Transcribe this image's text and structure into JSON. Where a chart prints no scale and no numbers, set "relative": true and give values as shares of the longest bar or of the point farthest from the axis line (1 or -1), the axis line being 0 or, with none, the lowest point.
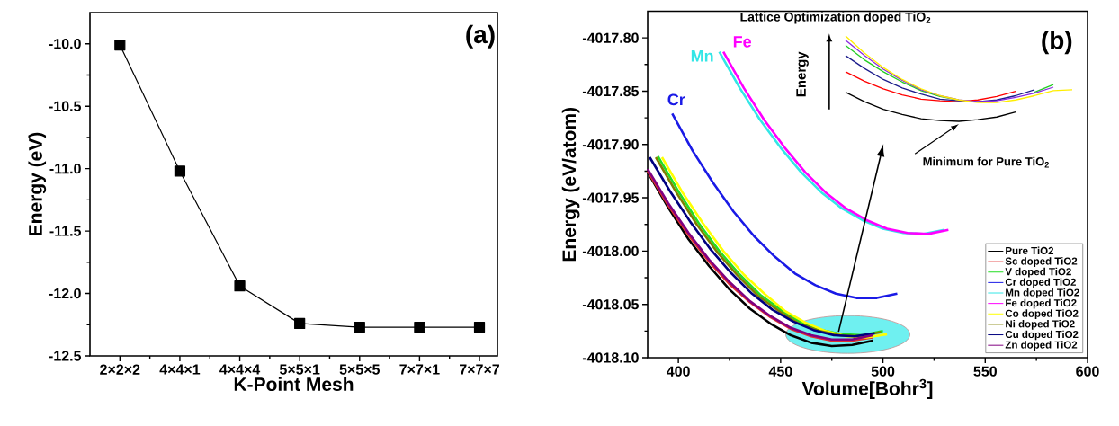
{
  "chart_data": [
    {
      "type": "line",
      "xlabel": "K-Point Mesh",
      "ylabel": "Energy (eV)",
      "categories": [
        "2×2×2",
        "4×4×1",
        "4×4×4",
        "5×5×1",
        "5×5×5",
        "7×7×1",
        "7×7×7"
      ],
      "values": [
        -10.01,
        -11.02,
        -11.94,
        -12.24,
        -12.27,
        -12.27,
        -12.27
      ],
      "color": "#000000",
      "marker": "square",
      "ylim": [
        -12.5,
        -9.75
      ],
      "yticks": [
        -12.5,
        {
          "value": -12.0,
          "label": "-12.0"
        },
        -11.5,
        {
          "value": -11.0,
          "label": "-11.0"
        },
        -10.5,
        {
          "value": -10.0,
          "label": "-10.0"
        }
      ],
      "annotations": [
        "(a)"
      ]
    },
    {
      "type": "line",
      "xlabel": "Volume[Bohr$^{3}$]",
      "ylabel": "Energy (eV/atom)",
      "xlim": [
        385,
        600
      ],
      "xticks": [
        400,
        450,
        500,
        550,
        600
      ],
      "ylim": [
        -4018.1,
        -4017.775
      ],
      "yticks": [
        {
          "value": -4018.1,
          "label": "-4018.10"
        },
        -4018.05,
        {
          "value": -4018.0,
          "label": "-4018.00"
        },
        -4017.95,
        {
          "value": -4017.9,
          "label": "-4017.90"
        },
        -4017.85,
        {
          "value": -4017.8,
          "label": "-4017.80"
        }
      ],
      "legend": "bottom right",
      "series": [
        {
          "name": "Pure TiO2",
          "color": "#000000",
          "x": [
            385,
            395,
            405,
            415,
            425,
            435,
            445,
            455,
            465,
            475,
            485,
            495
          ],
          "values": [
            -4017.926,
            -4017.959,
            -4017.989,
            -4018.014,
            -4018.036,
            -4018.054,
            -4018.068,
            -4018.079,
            -4018.086,
            -4018.089,
            -4018.088,
            -4018.084
          ]
        },
        {
          "name": "Sc doped TiO2",
          "color": "#e03030",
          "x": [
            385,
            395,
            405,
            415,
            425,
            435,
            445,
            455,
            465,
            475,
            485,
            495
          ],
          "values": [
            -4017.925,
            -4017.957,
            -4017.985,
            -4018.01,
            -4018.031,
            -4018.048,
            -4018.062,
            -4018.073,
            -4018.08,
            -4018.084,
            -4018.084,
            -4018.081
          ]
        },
        {
          "name": "V doped TiO2",
          "color": "#22dd22",
          "x": [
            390,
            400,
            410,
            420,
            430,
            440,
            450,
            460,
            470,
            480,
            490,
            500
          ],
          "values": [
            -4017.911,
            -4017.944,
            -4017.974,
            -4018.0,
            -4018.022,
            -4018.041,
            -4018.055,
            -4018.067,
            -4018.074,
            -4018.078,
            -4018.079,
            -4018.075
          ]
        },
        {
          "name": "Cr doped TiO2",
          "color": "#1a1ae6",
          "x": [
            397,
            407,
            417,
            427,
            437,
            447,
            457,
            467,
            477,
            487,
            497,
            507
          ],
          "values": [
            -4017.871,
            -4017.906,
            -4017.936,
            -4017.963,
            -4017.986,
            -4018.005,
            -4018.021,
            -4018.032,
            -4018.04,
            -4018.044,
            -4018.044,
            -4018.04
          ]
        },
        {
          "name": "Mn doped TiO2",
          "color": "#33e6e6",
          "x": [
            420,
            430,
            440,
            450,
            460,
            470,
            480,
            490,
            500,
            510,
            520,
            530
          ],
          "values": [
            -4017.813,
            -4017.847,
            -4017.877,
            -4017.903,
            -4017.926,
            -4017.945,
            -4017.96,
            -4017.971,
            -4017.979,
            -4017.983,
            -4017.984,
            -4017.98
          ]
        },
        {
          "name": "Fe doped TiO2",
          "color": "#ff00ff",
          "x": [
            422,
            432,
            442,
            452,
            462,
            472,
            482,
            492,
            502,
            512,
            522,
            532
          ],
          "values": [
            -4017.813,
            -4017.847,
            -4017.877,
            -4017.903,
            -4017.926,
            -4017.945,
            -4017.96,
            -4017.971,
            -4017.979,
            -4017.983,
            -4017.984,
            -4017.98
          ]
        },
        {
          "name": "Co doped TiO2",
          "color": "#ffff00",
          "x": [
            392,
            402,
            412,
            422,
            432,
            442,
            452,
            462,
            472,
            482,
            492,
            502
          ],
          "values": [
            -4017.912,
            -4017.945,
            -4017.974,
            -4018.0,
            -4018.022,
            -4018.04,
            -4018.056,
            -4018.067,
            -4018.075,
            -4018.08,
            -4018.081,
            -4018.078
          ]
        },
        {
          "name": "Ni doped TiO2",
          "color": "#808000",
          "x": [
            389,
            399,
            409,
            419,
            429,
            439,
            449,
            459,
            469,
            479,
            489,
            499
          ],
          "values": [
            -4017.912,
            -4017.945,
            -4017.975,
            -4018.001,
            -4018.023,
            -4018.042,
            -4018.056,
            -4018.068,
            -4018.075,
            -4018.079,
            -4018.08,
            -4018.076
          ]
        },
        {
          "name": "Cu doped TiO2",
          "color": "#000080",
          "x": [
            386,
            396,
            406,
            416,
            426,
            436,
            446,
            456,
            466,
            476,
            486,
            496
          ],
          "values": [
            -4017.912,
            -4017.944,
            -4017.973,
            -4017.999,
            -4018.021,
            -4018.04,
            -4018.055,
            -4018.066,
            -4018.074,
            -4018.079,
            -4018.08,
            -4018.077
          ]
        },
        {
          "name": "Zn doped TiO2",
          "color": "#800080",
          "x": [
            385,
            395,
            405,
            415,
            425,
            435,
            445,
            455,
            465,
            475,
            485,
            495
          ],
          "values": [
            -4017.923,
            -4017.955,
            -4017.983,
            -4018.008,
            -4018.029,
            -4018.047,
            -4018.061,
            -4018.072,
            -4018.079,
            -4018.083,
            -4018.083,
            -4018.079
          ]
        }
      ],
      "annotations": [
        "Cr",
        "Mn",
        "Fe",
        "(b)"
      ]
    },
    {
      "type": "line",
      "relative": true,
      "title": "Lattice Optimization doped TiO$_{2}$",
      "ylabel": "Energy",
      "categories": [
        null,
        null,
        null,
        null,
        null,
        null,
        null,
        null,
        null,
        null,
        null,
        null,
        null
      ],
      "series": [
        {
          "color": "#000000",
          "values": [
            0.34,
            0.23,
            0.14,
            0.08,
            0.03,
            0.01,
            0.0,
            0.02,
            0.05,
            0.11,
            null,
            null,
            null
          ]
        },
        {
          "color": "#ff0000",
          "values": [
            0.58,
            0.47,
            0.38,
            0.31,
            0.26,
            0.24,
            0.23,
            0.25,
            0.29,
            0.35,
            null,
            null,
            null
          ]
        },
        {
          "color": "#1c1c8c",
          "values": [
            0.77,
            0.62,
            0.49,
            0.39,
            0.32,
            0.26,
            0.24,
            0.23,
            0.25,
            0.3,
            0.37,
            null,
            null
          ]
        },
        {
          "color": "#22cc22",
          "values": [
            0.89,
            0.72,
            0.58,
            0.46,
            0.36,
            0.29,
            0.25,
            null,
            null,
            null,
            0.34,
            0.43,
            null
          ]
        },
        {
          "color": "#8b2be2",
          "values": [
            0.95,
            0.77,
            0.61,
            0.48,
            0.37,
            0.3,
            0.25,
            0.23,
            0.24,
            0.28,
            0.33,
            0.4,
            null
          ]
        },
        {
          "color": "#ffee00",
          "values": [
            1.0,
            0.8,
            0.63,
            0.49,
            0.38,
            0.3,
            0.25,
            0.22,
            0.22,
            0.25,
            0.3,
            0.36,
            0.37
          ]
        }
      ],
      "annotations": [
        "Minimum for Pure TiO$_{2}$"
      ]
    }
  ]
}
